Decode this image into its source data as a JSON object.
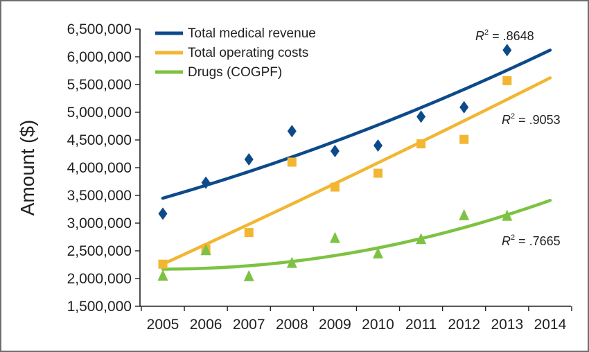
{
  "chart_data": {
    "type": "scatter",
    "ylabel": "Amount ($)",
    "xlabel": "",
    "title": "",
    "xlim": [
      2005,
      2014
    ],
    "ylim": [
      1500000,
      6500000
    ],
    "x_ticks": [
      "2005",
      "2006",
      "2007",
      "2008",
      "2009",
      "2010",
      "2011",
      "2012",
      "2013",
      "2014"
    ],
    "y_ticks": [
      "1,500,000",
      "2,000,000",
      "2,500,000",
      "3,000,000",
      "3,500,000",
      "4,000,000",
      "4,500,000",
      "5,000,000",
      "5,500,000",
      "6,000,000",
      "6,500,000"
    ],
    "legend_position": "top-left",
    "grid": false,
    "series": [
      {
        "name": "Total medical revenue",
        "color": "#0d4a8a",
        "marker": "diamond",
        "x": [
          2005,
          2006,
          2007,
          2008,
          2009,
          2010,
          2011,
          2012,
          2013
        ],
        "values": [
          3170000,
          3730000,
          4150000,
          4660000,
          4300000,
          4400000,
          4920000,
          5090000,
          6120000
        ],
        "trend": {
          "type": "quadratic",
          "points": [
            [
              2005,
              3450000
            ],
            [
              2009.5,
              4620000
            ],
            [
              2014,
              6120000
            ]
          ]
        },
        "r2_label": "R",
        "r2_sup": "2",
        "r2_value": " = .8648"
      },
      {
        "name": "Total operating costs",
        "color": "#f2b632",
        "marker": "square",
        "x": [
          2005,
          2006,
          2007,
          2008,
          2009,
          2010,
          2011,
          2012,
          2013
        ],
        "values": [
          2260000,
          2530000,
          2830000,
          4100000,
          3650000,
          3900000,
          4430000,
          4510000,
          5570000
        ],
        "trend": {
          "type": "quadratic",
          "points": [
            [
              2005,
              2260000
            ],
            [
              2009.5,
              3900000
            ],
            [
              2014,
              5620000
            ]
          ]
        },
        "r2_label": "R",
        "r2_sup": "2",
        "r2_value": " = .9053"
      },
      {
        "name": "Drugs (COGPF)",
        "color": "#7dc242",
        "marker": "triangle",
        "x": [
          2005,
          2006,
          2007,
          2008,
          2009,
          2010,
          2011,
          2012,
          2013
        ],
        "values": [
          2050000,
          2510000,
          2040000,
          2280000,
          2730000,
          2450000,
          2710000,
          3140000,
          3130000
        ],
        "trend": {
          "type": "quadratic",
          "points": [
            [
              2005,
              2170000
            ],
            [
              2009.5,
              2480000
            ],
            [
              2014,
              3410000
            ]
          ]
        },
        "r2_label": "R",
        "r2_sup": "2",
        "r2_value": " = .7665"
      }
    ]
  }
}
